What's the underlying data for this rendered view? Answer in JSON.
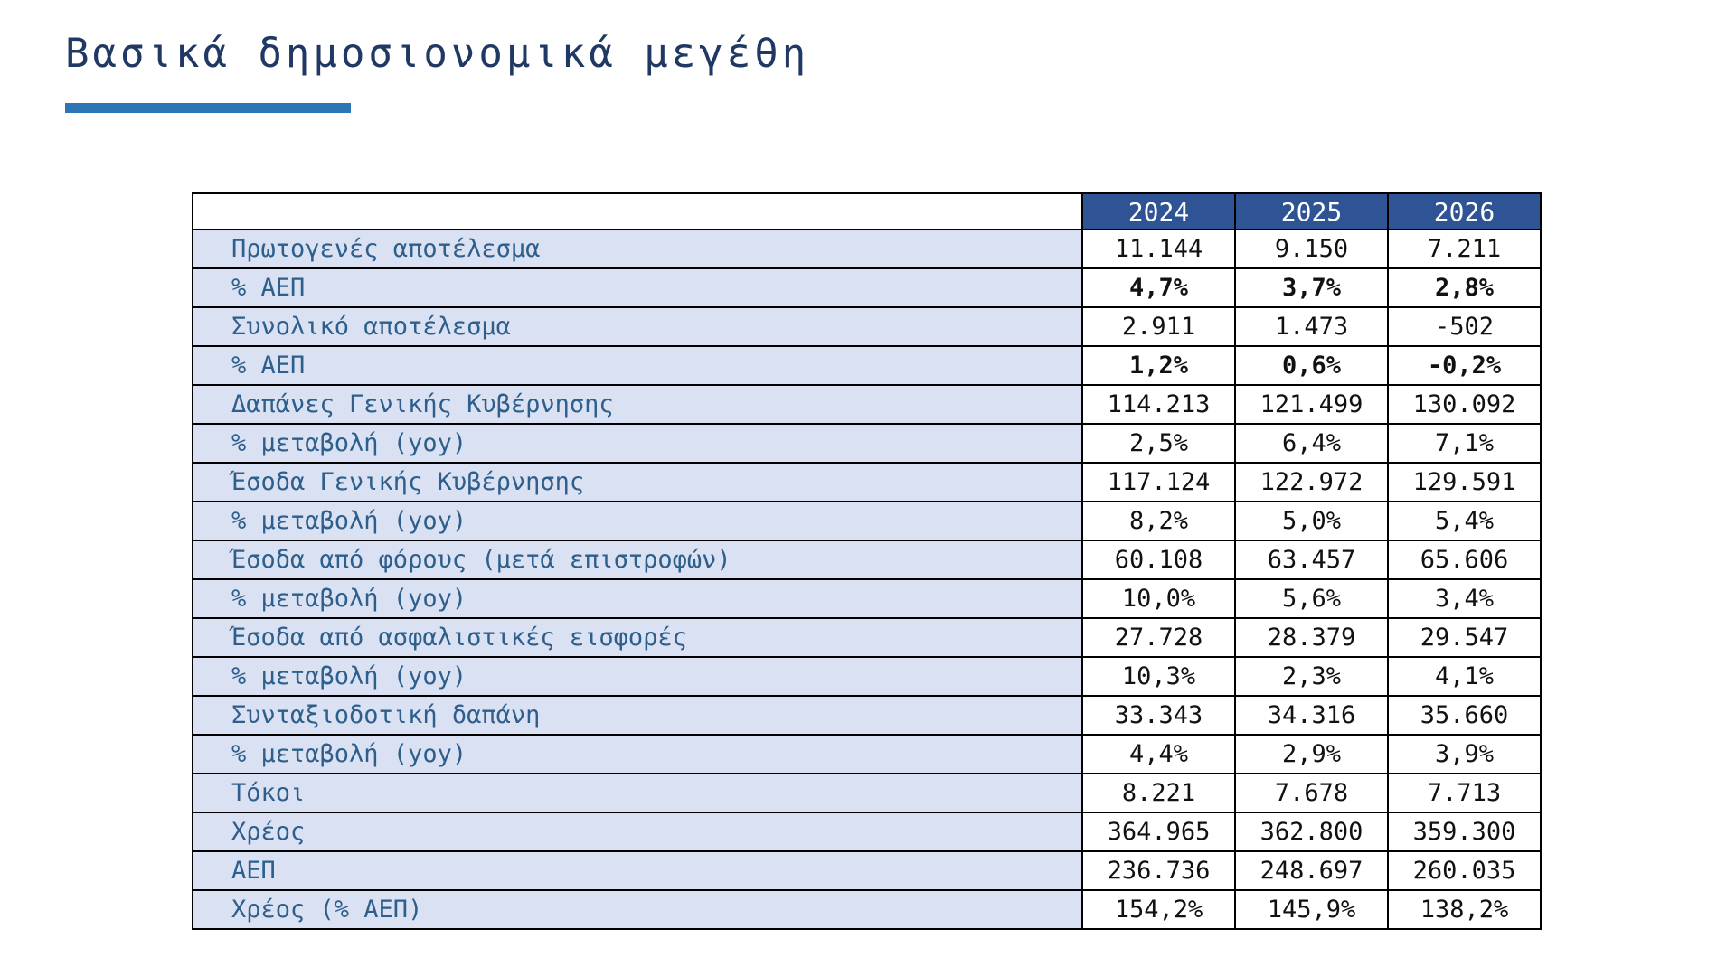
{
  "page": {
    "title": "Βασικά δημοσιονομικά μεγέθη"
  },
  "colors": {
    "title_text": "#1F3864",
    "accent_bar": "#2E75B6",
    "header_bg": "#2F5496",
    "header_text": "#FFFFFF",
    "label_bg": "#D9E1F2",
    "label_text": "#2E5F8C",
    "value_text": "#111111",
    "border": "#000000"
  },
  "chart_data": {
    "type": "table",
    "title": "Βασικά δημοσιονομικά μεγέθη",
    "columns": [
      "2024",
      "2025",
      "2026"
    ],
    "rows": [
      {
        "label": "Πρωτογενές αποτέλεσμα",
        "values": [
          "11.144",
          "9.150",
          "7.211"
        ],
        "bold": false
      },
      {
        "label": "% ΑΕΠ",
        "values": [
          "4,7%",
          "3,7%",
          "2,8%"
        ],
        "bold": true
      },
      {
        "label": "Συνολικό αποτέλεσμα",
        "values": [
          "2.911",
          "1.473",
          "-502"
        ],
        "bold": false
      },
      {
        "label": "% ΑΕΠ",
        "values": [
          "1,2%",
          "0,6%",
          "-0,2%"
        ],
        "bold": true
      },
      {
        "label": "Δαπάνες Γενικής Κυβέρνησης",
        "values": [
          "114.213",
          "121.499",
          "130.092"
        ],
        "bold": false
      },
      {
        "label": "% μεταβολή (yoy)",
        "values": [
          "2,5%",
          "6,4%",
          "7,1%"
        ],
        "bold": false
      },
      {
        "label": "Έσοδα Γενικής Κυβέρνησης",
        "values": [
          "117.124",
          "122.972",
          "129.591"
        ],
        "bold": false
      },
      {
        "label": "% μεταβολή (yoy)",
        "values": [
          "8,2%",
          "5,0%",
          "5,4%"
        ],
        "bold": false
      },
      {
        "label": "Έσοδα από φόρους (μετά επιστροφών)",
        "values": [
          "60.108",
          "63.457",
          "65.606"
        ],
        "bold": false
      },
      {
        "label": "% μεταβολή (yoy)",
        "values": [
          "10,0%",
          "5,6%",
          "3,4%"
        ],
        "bold": false
      },
      {
        "label": "Έσοδα από ασφαλιστικές εισφορές",
        "values": [
          "27.728",
          "28.379",
          "29.547"
        ],
        "bold": false
      },
      {
        "label": "% μεταβολή (yoy)",
        "values": [
          "10,3%",
          "2,3%",
          "4,1%"
        ],
        "bold": false
      },
      {
        "label": "Συνταξιοδοτική δαπάνη",
        "values": [
          "33.343",
          "34.316",
          "35.660"
        ],
        "bold": false
      },
      {
        "label": "% μεταβολή (yoy)",
        "values": [
          "4,4%",
          "2,9%",
          "3,9%"
        ],
        "bold": false
      },
      {
        "label": "Τόκοι",
        "values": [
          "8.221",
          "7.678",
          "7.713"
        ],
        "bold": false
      },
      {
        "label": "Χρέος",
        "values": [
          "364.965",
          "362.800",
          "359.300"
        ],
        "bold": false
      },
      {
        "label": "ΑΕΠ",
        "values": [
          "236.736",
          "248.697",
          "260.035"
        ],
        "bold": false
      },
      {
        "label": "Χρέος (% ΑΕΠ)",
        "values": [
          "154,2%",
          "145,9%",
          "138,2%"
        ],
        "bold": false
      }
    ]
  }
}
